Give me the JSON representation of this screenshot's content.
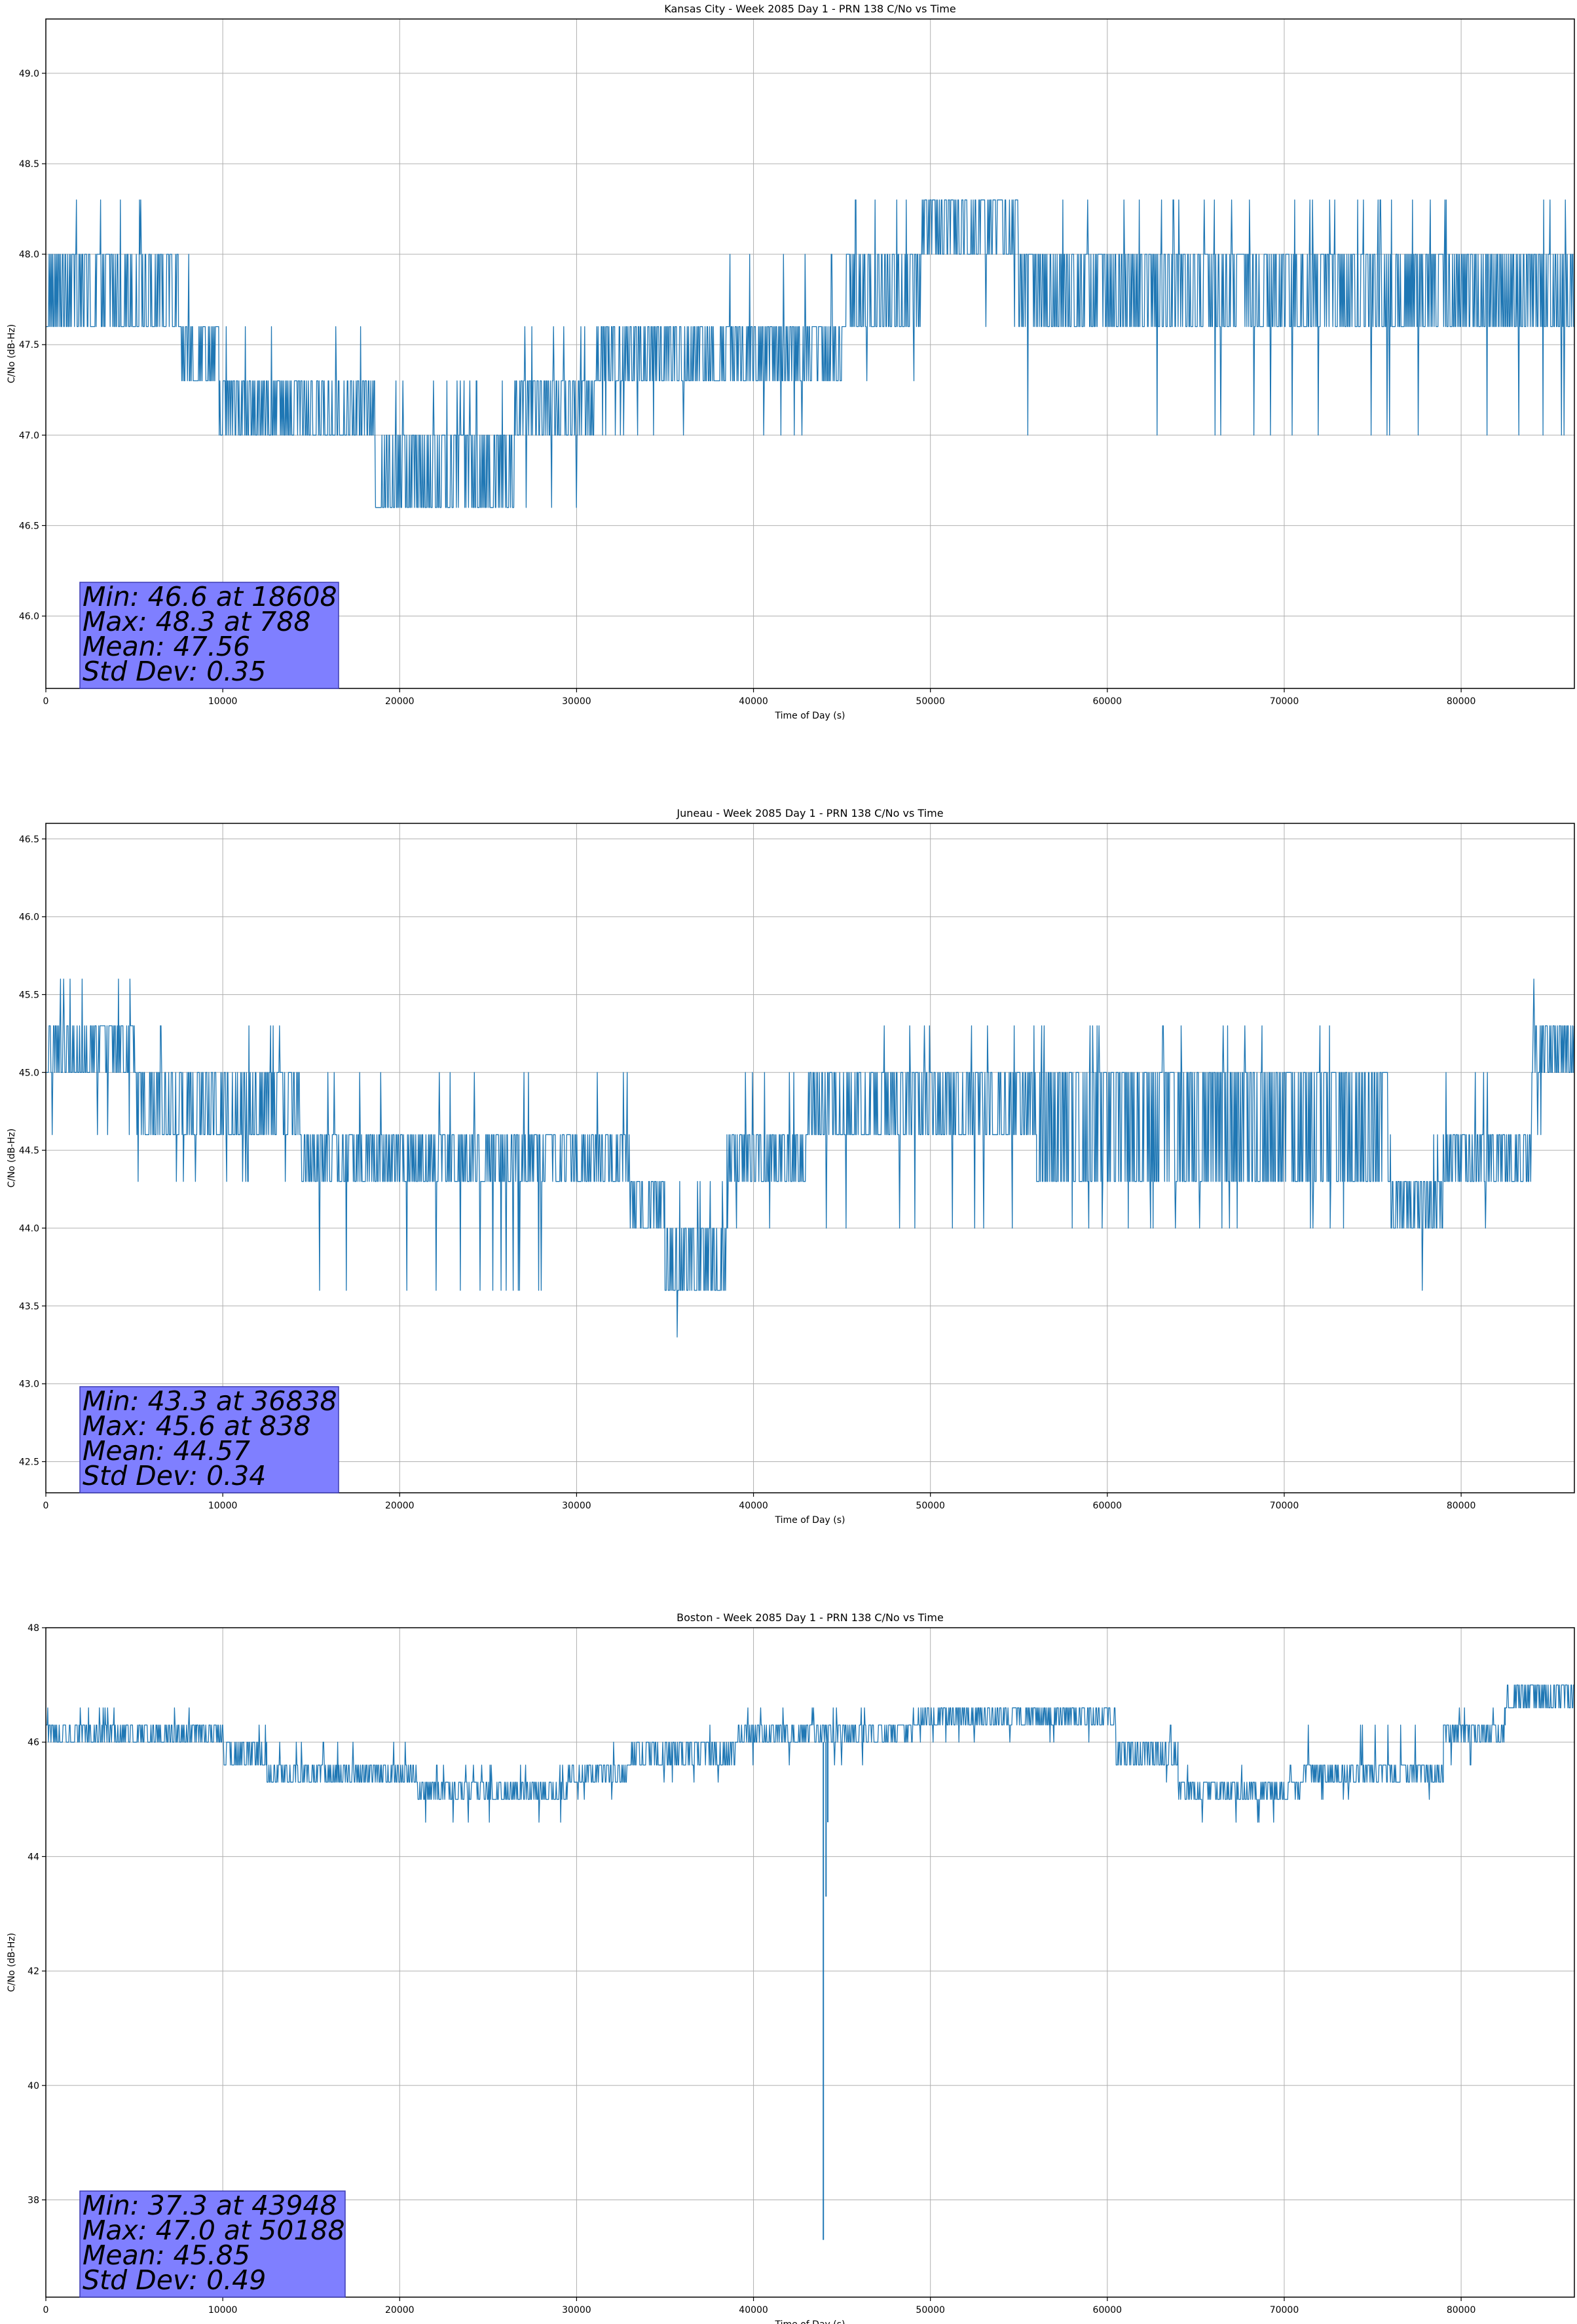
{
  "colors": {
    "series": "#1f77b4",
    "stats_box_fill": "#7f7fff",
    "stats_box_edge": "#3b3bb3",
    "grid": "#b0b0b0",
    "axes": "#000000",
    "background": "#ffffff"
  },
  "chart_data": [
    {
      "type": "line",
      "title": "Kansas City - Week 2085 Day 1 - PRN 138 C/No vs Time",
      "xlabel": "Time of Day (s)",
      "ylabel": "C/No (dB-Hz)",
      "xlim": [
        0,
        86400
      ],
      "ylim": [
        45.6,
        49.3
      ],
      "xticks": [
        0,
        10000,
        20000,
        30000,
        40000,
        50000,
        60000,
        70000,
        80000
      ],
      "xtick_labels": [
        "0",
        "10000",
        "20000",
        "30000",
        "40000",
        "50000",
        "60000",
        "70000",
        "80000"
      ],
      "yticks": [
        46.0,
        46.5,
        47.0,
        47.5,
        48.0,
        48.5,
        49.0
      ],
      "ytick_labels": [
        "46.0",
        "46.5",
        "47.0",
        "47.5",
        "48.0",
        "48.5",
        "49.0"
      ],
      "grid": true,
      "quantization_step": 0.3,
      "series": [
        {
          "name": "PRN 138 C/No",
          "segments": [
            {
              "x_start": 0,
              "x_end": 5500,
              "low": 47.6,
              "high": 48.0,
              "spike_high": 48.3,
              "spike_low": 47.6
            },
            {
              "x_start": 5500,
              "x_end": 7500,
              "low": 47.6,
              "high": 48.0,
              "spike_high": 48.0,
              "spike_low": 47.6
            },
            {
              "x_start": 7500,
              "x_end": 9800,
              "low": 47.3,
              "high": 47.6,
              "spike_high": 48.0,
              "spike_low": 47.3
            },
            {
              "x_start": 9800,
              "x_end": 18600,
              "low": 47.0,
              "high": 47.3,
              "spike_high": 47.6,
              "spike_low": 47.0
            },
            {
              "x_start": 18600,
              "x_end": 26500,
              "low": 46.6,
              "high": 47.0,
              "spike_high": 47.3,
              "spike_low": 46.6
            },
            {
              "x_start": 26500,
              "x_end": 31000,
              "low": 47.0,
              "high": 47.3,
              "spike_high": 47.6,
              "spike_low": 46.6
            },
            {
              "x_start": 31000,
              "x_end": 45000,
              "low": 47.3,
              "high": 47.6,
              "spike_high": 48.0,
              "spike_low": 47.0
            },
            {
              "x_start": 45000,
              "x_end": 49500,
              "low": 47.6,
              "high": 48.0,
              "spike_high": 48.3,
              "spike_low": 47.3
            },
            {
              "x_start": 49500,
              "x_end": 55000,
              "low": 48.0,
              "high": 48.3,
              "spike_high": 48.3,
              "spike_low": 47.6
            },
            {
              "x_start": 55000,
              "x_end": 86400,
              "low": 47.6,
              "high": 48.0,
              "spike_high": 48.3,
              "spike_low": 47.0
            }
          ]
        }
      ],
      "stats": {
        "min_line": "Min: 46.6 at 18608",
        "max_line": "Max: 48.3 at 788",
        "mean_line": "Mean: 47.56",
        "std_line": "Std Dev: 0.35"
      }
    },
    {
      "type": "line",
      "title": "Juneau - Week 2085 Day 1 - PRN 138 C/No vs Time",
      "xlabel": "Time of Day (s)",
      "ylabel": "C/No (dB-Hz)",
      "xlim": [
        0,
        86400
      ],
      "ylim": [
        42.3,
        46.6
      ],
      "xticks": [
        0,
        10000,
        20000,
        30000,
        40000,
        50000,
        60000,
        70000,
        80000
      ],
      "xtick_labels": [
        "0",
        "10000",
        "20000",
        "30000",
        "40000",
        "50000",
        "60000",
        "70000",
        "80000"
      ],
      "yticks": [
        42.5,
        43.0,
        43.5,
        44.0,
        44.5,
        45.0,
        45.5,
        46.0,
        46.5
      ],
      "ytick_labels": [
        "42.5",
        "43.0",
        "43.5",
        "44.0",
        "44.5",
        "45.0",
        "45.5",
        "46.0",
        "46.5"
      ],
      "grid": true,
      "quantization_step": 0.3,
      "series": [
        {
          "name": "PRN 138 C/No",
          "segments": [
            {
              "x_start": 0,
              "x_end": 5000,
              "low": 45.0,
              "high": 45.3,
              "spike_high": 45.6,
              "spike_low": 44.6
            },
            {
              "x_start": 5000,
              "x_end": 14500,
              "low": 44.6,
              "high": 45.0,
              "spike_high": 45.3,
              "spike_low": 44.3
            },
            {
              "x_start": 14500,
              "x_end": 33000,
              "low": 44.3,
              "high": 44.6,
              "spike_high": 45.0,
              "spike_low": 43.6
            },
            {
              "x_start": 33000,
              "x_end": 35000,
              "low": 44.0,
              "high": 44.3,
              "spike_high": 44.6,
              "spike_low": 43.6
            },
            {
              "x_start": 35000,
              "x_end": 38500,
              "low": 43.6,
              "high": 44.0,
              "spike_high": 44.3,
              "spike_low": 43.3
            },
            {
              "x_start": 38500,
              "x_end": 43000,
              "low": 44.3,
              "high": 44.6,
              "spike_high": 45.0,
              "spike_low": 44.0
            },
            {
              "x_start": 43000,
              "x_end": 56000,
              "low": 44.6,
              "high": 45.0,
              "spike_high": 45.3,
              "spike_low": 44.0
            },
            {
              "x_start": 56000,
              "x_end": 76000,
              "low": 44.3,
              "high": 45.0,
              "spike_high": 45.3,
              "spike_low": 44.0
            },
            {
              "x_start": 76000,
              "x_end": 79000,
              "low": 44.0,
              "high": 44.3,
              "spike_high": 44.6,
              "spike_low": 43.6
            },
            {
              "x_start": 79000,
              "x_end": 84000,
              "low": 44.3,
              "high": 44.6,
              "spike_high": 45.0,
              "spike_low": 44.0
            },
            {
              "x_start": 84000,
              "x_end": 86400,
              "low": 45.0,
              "high": 45.3,
              "spike_high": 45.6,
              "spike_low": 44.6
            }
          ]
        }
      ],
      "stats": {
        "min_line": "Min: 43.3 at 36838",
        "max_line": "Max: 45.6 at 838",
        "mean_line": "Mean: 44.57",
        "std_line": "Std Dev: 0.34"
      }
    },
    {
      "type": "line",
      "title": "Boston - Week 2085 Day 1 - PRN 138 C/No vs Time",
      "xlabel": "Time of Day (s)",
      "ylabel": "C/No (dB-Hz)",
      "xlim": [
        0,
        86400
      ],
      "ylim": [
        36.3,
        48.0
      ],
      "xticks": [
        0,
        10000,
        20000,
        30000,
        40000,
        50000,
        60000,
        70000,
        80000
      ],
      "xtick_labels": [
        "0",
        "10000",
        "20000",
        "30000",
        "40000",
        "50000",
        "60000",
        "70000",
        "80000"
      ],
      "yticks": [
        38,
        40,
        42,
        44,
        46,
        48
      ],
      "ytick_labels": [
        "38",
        "40",
        "42",
        "44",
        "46",
        "48"
      ],
      "grid": true,
      "quantization_step": 0.3,
      "series": [
        {
          "name": "PRN 138 C/No",
          "segments": [
            {
              "x_start": 0,
              "x_end": 8500,
              "low": 46.0,
              "high": 46.3,
              "spike_high": 46.6,
              "spike_low": 46.0
            },
            {
              "x_start": 8500,
              "x_end": 10000,
              "low": 46.0,
              "high": 46.3,
              "spike_high": 46.3,
              "spike_low": 45.6
            },
            {
              "x_start": 10000,
              "x_end": 12500,
              "low": 45.6,
              "high": 46.0,
              "spike_high": 46.3,
              "spike_low": 45.3
            },
            {
              "x_start": 12500,
              "x_end": 21000,
              "low": 45.3,
              "high": 45.6,
              "spike_high": 46.0,
              "spike_low": 45.3
            },
            {
              "x_start": 21000,
              "x_end": 29500,
              "low": 45.0,
              "high": 45.3,
              "spike_high": 45.6,
              "spike_low": 44.6
            },
            {
              "x_start": 29500,
              "x_end": 33000,
              "low": 45.3,
              "high": 45.6,
              "spike_high": 46.0,
              "spike_low": 45.0
            },
            {
              "x_start": 33000,
              "x_end": 39000,
              "low": 45.6,
              "high": 46.0,
              "spike_high": 46.3,
              "spike_low": 45.3
            },
            {
              "x_start": 39000,
              "x_end": 49000,
              "low": 46.0,
              "high": 46.3,
              "spike_high": 46.6,
              "spike_low": 45.6
            },
            {
              "x_start": 49000,
              "x_end": 51000,
              "low": 46.3,
              "high": 46.6,
              "spike_high": 47.0,
              "spike_low": 46.0
            },
            {
              "x_start": 51000,
              "x_end": 60500,
              "low": 46.3,
              "high": 46.6,
              "spike_high": 46.6,
              "spike_low": 46.0
            },
            {
              "x_start": 60500,
              "x_end": 64000,
              "low": 45.6,
              "high": 46.0,
              "spike_high": 46.3,
              "spike_low": 45.3
            },
            {
              "x_start": 64000,
              "x_end": 71000,
              "low": 45.0,
              "high": 45.3,
              "spike_high": 45.6,
              "spike_low": 44.6
            },
            {
              "x_start": 71000,
              "x_end": 79000,
              "low": 45.3,
              "high": 45.6,
              "spike_high": 46.3,
              "spike_low": 45.0
            },
            {
              "x_start": 79000,
              "x_end": 82500,
              "low": 46.0,
              "high": 46.3,
              "spike_high": 46.6,
              "spike_low": 45.6
            },
            {
              "x_start": 82500,
              "x_end": 86400,
              "low": 46.6,
              "high": 47.0,
              "spike_high": 47.0,
              "spike_low": 46.3
            }
          ],
          "dropouts": [
            {
              "x": 43948,
              "value": 37.3
            },
            {
              "x": 44100,
              "value": 43.3
            },
            {
              "x": 44200,
              "value": 44.6
            }
          ]
        }
      ],
      "stats": {
        "min_line": "Min: 37.3 at 43948",
        "max_line": "Max: 47.0 at 50188",
        "mean_line": "Mean: 45.85",
        "std_line": "Std Dev: 0.49"
      }
    }
  ]
}
